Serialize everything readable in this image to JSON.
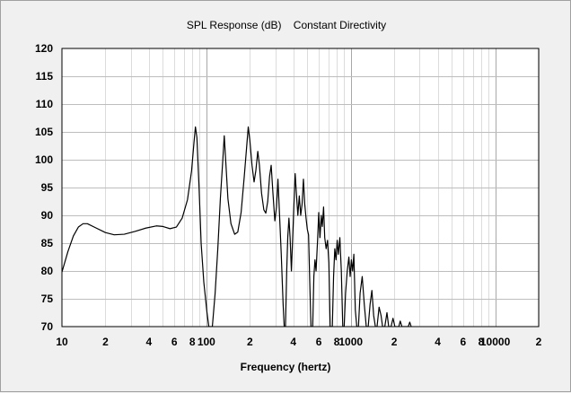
{
  "chart_data": {
    "type": "line",
    "title": "SPL Response (dB)    Constant Directivity",
    "xlabel": "Frequency (hertz)",
    "ylabel": "",
    "x_scale": "log",
    "xlim": [
      10,
      20000
    ],
    "ylim": [
      70,
      120
    ],
    "grid": true,
    "y_ticks": [
      "70",
      "75",
      "80",
      "85",
      "90",
      "95",
      "100",
      "105",
      "110",
      "115",
      "120"
    ],
    "x_ticks": [
      {
        "value": 10,
        "label": "10"
      },
      {
        "value": 20,
        "label": "2"
      },
      {
        "value": 40,
        "label": "4"
      },
      {
        "value": 60,
        "label": "6"
      },
      {
        "value": 80,
        "label": "8"
      },
      {
        "value": 100,
        "label": "100"
      },
      {
        "value": 200,
        "label": "2"
      },
      {
        "value": 400,
        "label": "4"
      },
      {
        "value": 600,
        "label": "6"
      },
      {
        "value": 800,
        "label": "8"
      },
      {
        "value": 1000,
        "label": "1000"
      },
      {
        "value": 2000,
        "label": "2"
      },
      {
        "value": 4000,
        "label": "4"
      },
      {
        "value": 6000,
        "label": "6"
      },
      {
        "value": 8000,
        "label": "8"
      },
      {
        "value": 10000,
        "label": "10000"
      },
      {
        "value": 20000,
        "label": "2"
      }
    ],
    "series": [
      {
        "color": "#000000",
        "points": [
          [
            10,
            79.8
          ],
          [
            11,
            83.5
          ],
          [
            12,
            86.3
          ],
          [
            13,
            87.9
          ],
          [
            14,
            88.5
          ],
          [
            15,
            88.5
          ],
          [
            17,
            87.8
          ],
          [
            20,
            86.9
          ],
          [
            23,
            86.5
          ],
          [
            27,
            86.6
          ],
          [
            32,
            87.1
          ],
          [
            38,
            87.7
          ],
          [
            45,
            88.1
          ],
          [
            50,
            88.0
          ],
          [
            56,
            87.6
          ],
          [
            62,
            87.9
          ],
          [
            68,
            89.5
          ],
          [
            74,
            92.8
          ],
          [
            79,
            98.0
          ],
          [
            82,
            103.0
          ],
          [
            84,
            105.9
          ],
          [
            86,
            104.0
          ],
          [
            89,
            95.0
          ],
          [
            92,
            85.0
          ],
          [
            96,
            78.0
          ],
          [
            101,
            72.5
          ],
          [
            104,
            70.0
          ],
          [
            110,
            70.0
          ],
          [
            115,
            76.0
          ],
          [
            120,
            84.0
          ],
          [
            125,
            93.0
          ],
          [
            130,
            100.0
          ],
          [
            133,
            104.3
          ],
          [
            136,
            100.0
          ],
          [
            141,
            93.0
          ],
          [
            148,
            88.5
          ],
          [
            157,
            86.6
          ],
          [
            165,
            87.0
          ],
          [
            174,
            90.5
          ],
          [
            183,
            97.0
          ],
          [
            191,
            103.0
          ],
          [
            195,
            105.9
          ],
          [
            200,
            103.5
          ],
          [
            207,
            99.0
          ],
          [
            214,
            96.0
          ],
          [
            220,
            98.0
          ],
          [
            227,
            101.5
          ],
          [
            233,
            99.0
          ],
          [
            241,
            94.0
          ],
          [
            250,
            91.0
          ],
          [
            258,
            90.4
          ],
          [
            266,
            92.5
          ],
          [
            274,
            97.0
          ],
          [
            281,
            99.0
          ],
          [
            289,
            94.0
          ],
          [
            298,
            89.0
          ],
          [
            306,
            91.5
          ],
          [
            313,
            96.5
          ],
          [
            320,
            91.0
          ],
          [
            330,
            83.0
          ],
          [
            340,
            74.0
          ],
          [
            346,
            70.0
          ],
          [
            353,
            70.0
          ],
          [
            360,
            80.0
          ],
          [
            366,
            86.0
          ],
          [
            373,
            89.5
          ],
          [
            380,
            86.0
          ],
          [
            388,
            80.0
          ],
          [
            396,
            86.0
          ],
          [
            404,
            92.0
          ],
          [
            412,
            97.5
          ],
          [
            420,
            94.0
          ],
          [
            430,
            90.0
          ],
          [
            440,
            93.5
          ],
          [
            450,
            90.0
          ],
          [
            460,
            92.0
          ],
          [
            470,
            96.5
          ],
          [
            480,
            92.0
          ],
          [
            490,
            89.5
          ],
          [
            500,
            87.5
          ],
          [
            510,
            86.5
          ],
          [
            520,
            78.0
          ],
          [
            530,
            70.0
          ],
          [
            545,
            70.0
          ],
          [
            555,
            79.0
          ],
          [
            565,
            82.0
          ],
          [
            575,
            80.0
          ],
          [
            590,
            86.0
          ],
          [
            600,
            90.5
          ],
          [
            612,
            86.0
          ],
          [
            625,
            90.0
          ],
          [
            635,
            88.0
          ],
          [
            648,
            91.5
          ],
          [
            660,
            86.0
          ],
          [
            675,
            84.0
          ],
          [
            690,
            85.5
          ],
          [
            705,
            81.5
          ],
          [
            720,
            70.0
          ],
          [
            745,
            70.0
          ],
          [
            760,
            79.0
          ],
          [
            775,
            84.0
          ],
          [
            790,
            82.0
          ],
          [
            805,
            85.5
          ],
          [
            820,
            83.0
          ],
          [
            840,
            86.0
          ],
          [
            860,
            80.0
          ],
          [
            880,
            70.0
          ],
          [
            900,
            70.0
          ],
          [
            920,
            76.0
          ],
          [
            945,
            80.0
          ],
          [
            970,
            82.5
          ],
          [
            990,
            79.0
          ],
          [
            1010,
            82.0
          ],
          [
            1030,
            80.0
          ],
          [
            1050,
            83.0
          ],
          [
            1075,
            73.0
          ],
          [
            1100,
            70.0
          ],
          [
            1130,
            70.0
          ],
          [
            1160,
            76.0
          ],
          [
            1200,
            79.0
          ],
          [
            1240,
            74.0
          ],
          [
            1280,
            70.0
          ],
          [
            1320,
            70.0
          ],
          [
            1360,
            74.0
          ],
          [
            1400,
            76.5
          ],
          [
            1440,
            72.0
          ],
          [
            1480,
            70.0
          ],
          [
            1520,
            70.0
          ],
          [
            1570,
            73.5
          ],
          [
            1620,
            72.0
          ],
          [
            1660,
            70.0
          ],
          [
            1720,
            70.0
          ],
          [
            1780,
            72.5
          ],
          [
            1830,
            70.0
          ],
          [
            1900,
            70.0
          ],
          [
            1960,
            71.5
          ],
          [
            2020,
            70.0
          ],
          [
            2150,
            70.0
          ],
          [
            2200,
            71.0
          ],
          [
            2260,
            70.0
          ],
          [
            2500,
            70.0
          ],
          [
            2560,
            70.8
          ],
          [
            2620,
            70.0
          ]
        ]
      }
    ]
  }
}
